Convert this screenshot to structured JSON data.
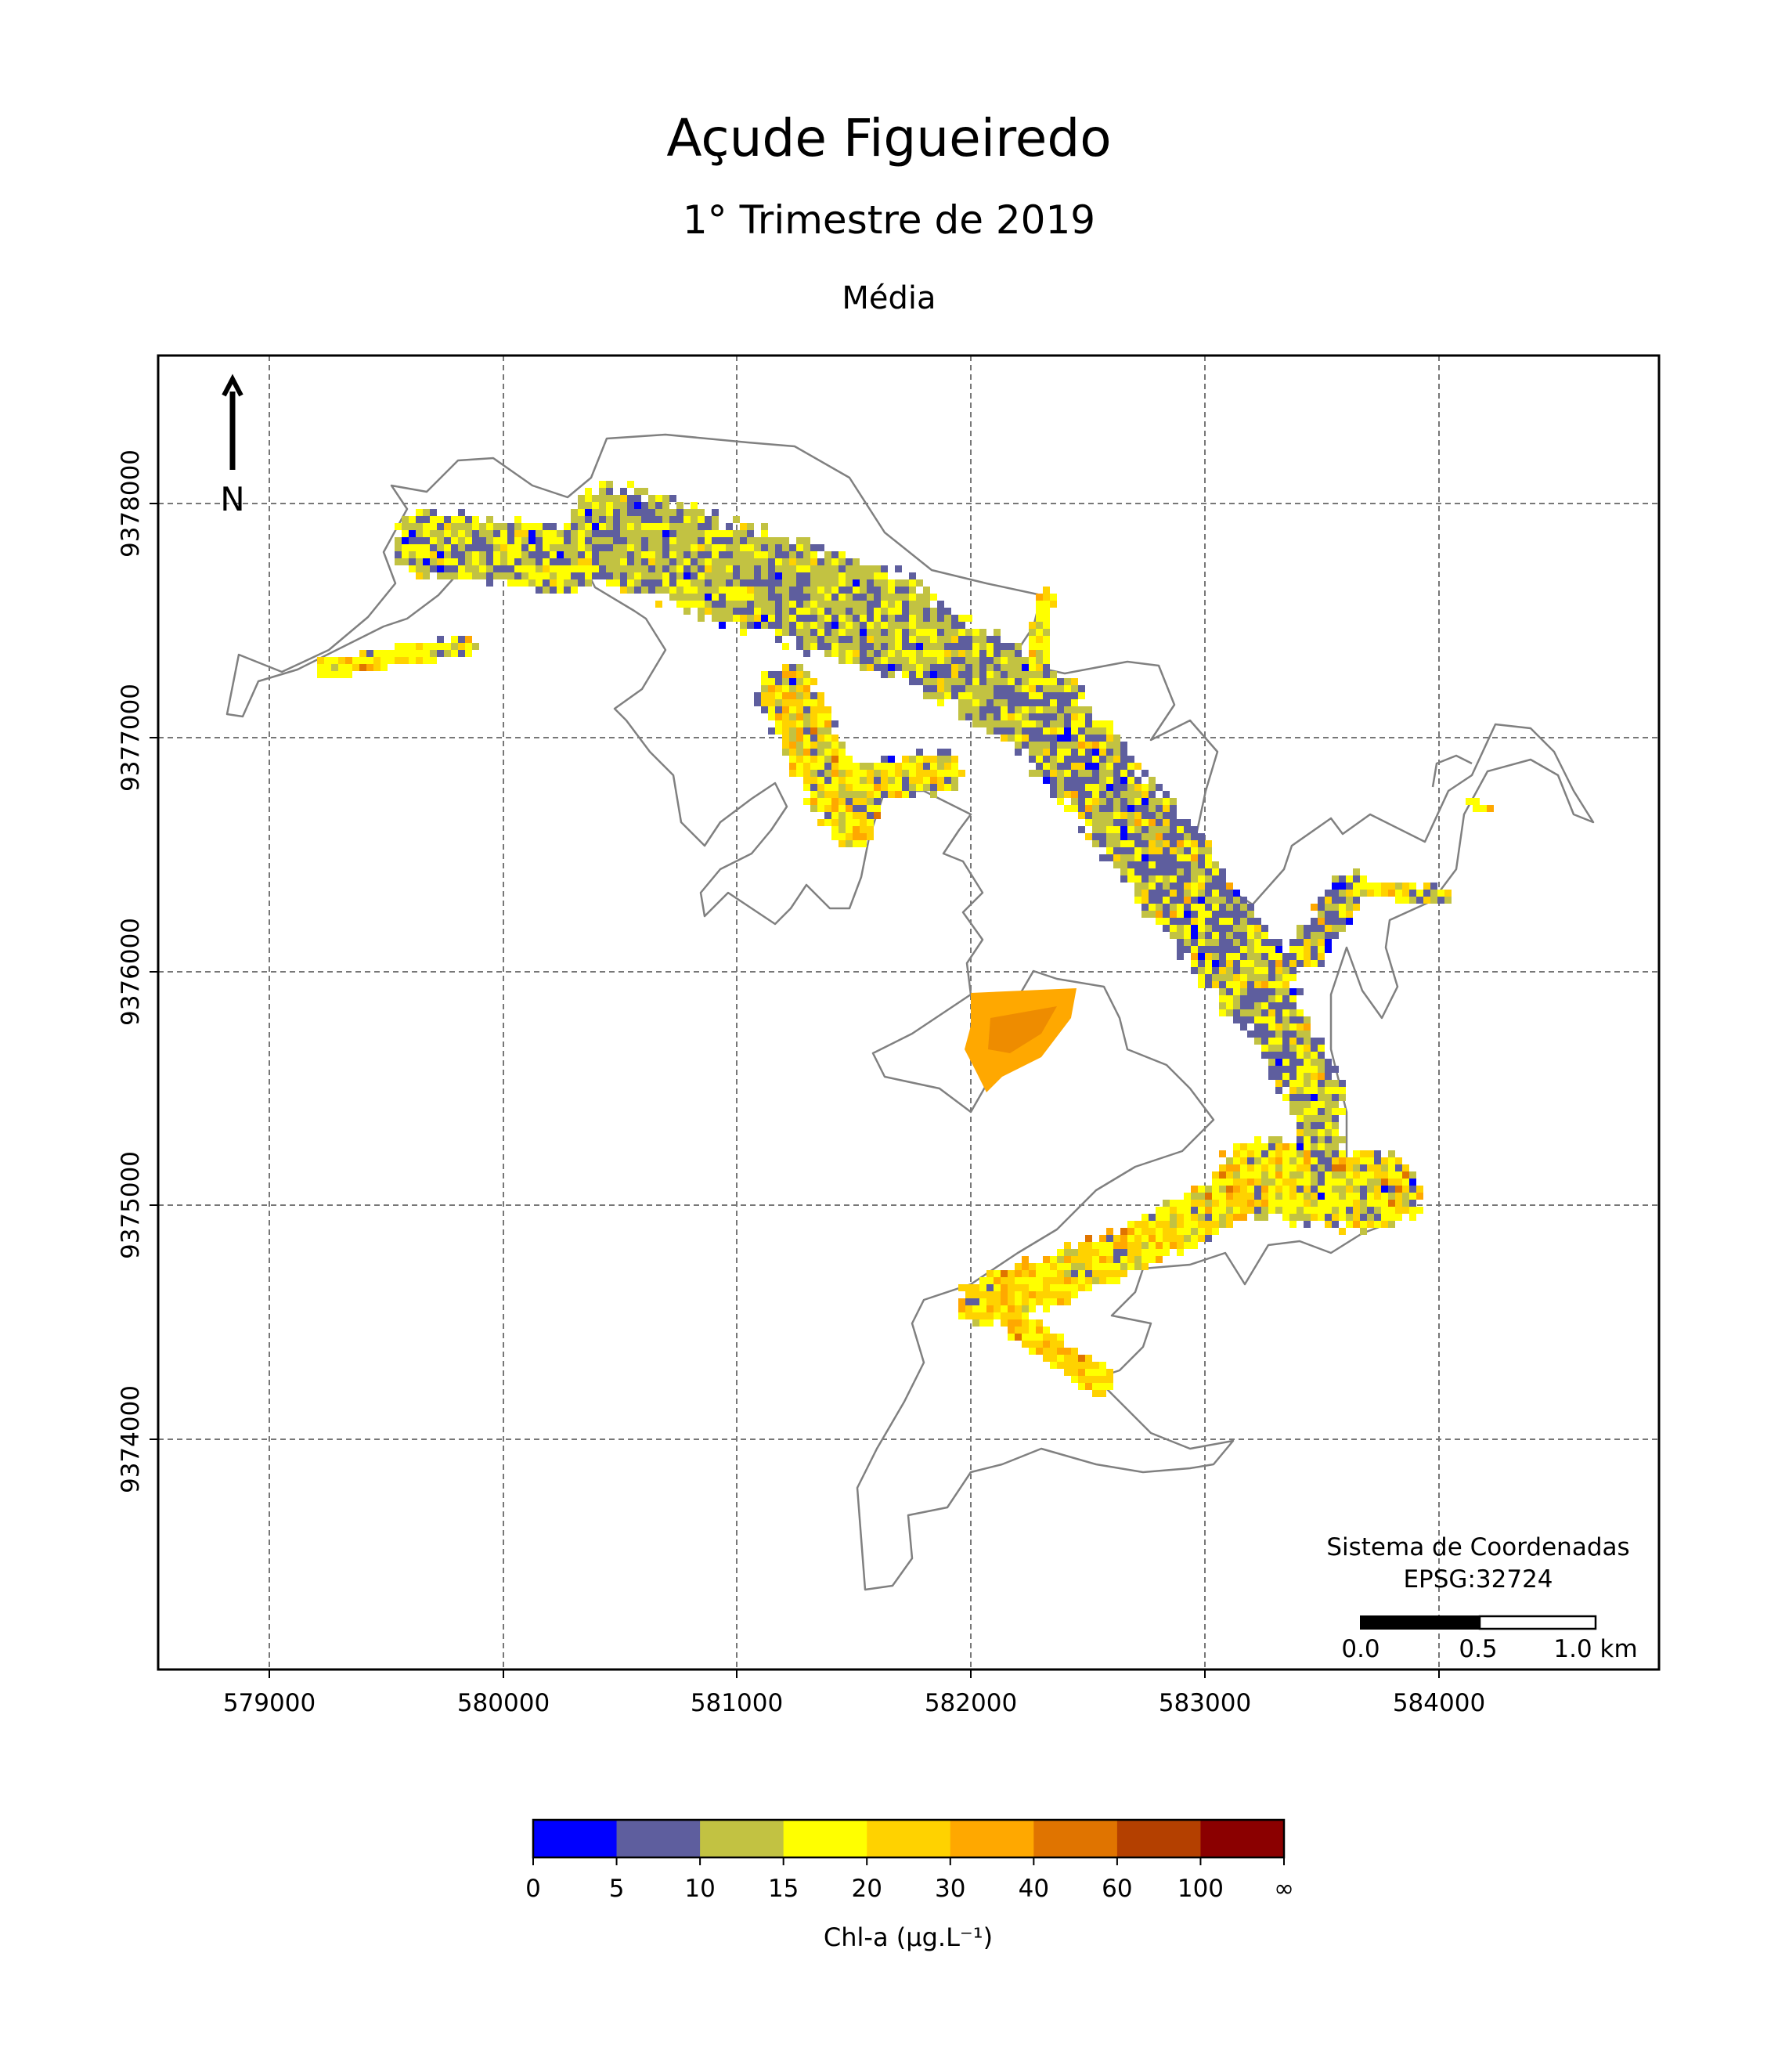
{
  "map": {
    "title": "Açude Figueiredo",
    "subtitle": "1° Trimestre de 2019",
    "panel_title": "Média",
    "north_label": "N",
    "x_ticks": [
      "579000",
      "580000",
      "581000",
      "582000",
      "583000",
      "584000"
    ],
    "y_ticks": [
      "9378000",
      "9377000",
      "9376000",
      "9375000",
      "9374000"
    ],
    "crs_label_line1": "Sistema de Coordenadas",
    "crs_label_line2": "EPSG:32724",
    "scale_labels": [
      "0.0",
      "0.5",
      "1.0 km"
    ],
    "grid": true,
    "outline_color": "#808080"
  },
  "legend": {
    "label": "Chl-a (μg.L⁻¹)",
    "ticks": [
      "0",
      "5",
      "10",
      "15",
      "20",
      "30",
      "40",
      "60",
      "100",
      "∞"
    ],
    "colors": [
      "#0000ff",
      "#5e5e9e",
      "#c2c242",
      "#ffff00",
      "#ffd200",
      "#ffa800",
      "#e07400",
      "#b44000",
      "#8b0000"
    ]
  }
}
